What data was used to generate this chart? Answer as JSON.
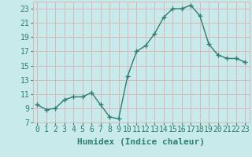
{
  "x": [
    0,
    1,
    2,
    3,
    4,
    5,
    6,
    7,
    8,
    9,
    10,
    11,
    12,
    13,
    14,
    15,
    16,
    17,
    18,
    19,
    20,
    21,
    22,
    23
  ],
  "y": [
    9.5,
    8.8,
    9.0,
    10.2,
    10.6,
    10.6,
    11.2,
    9.5,
    7.8,
    7.5,
    13.5,
    17.0,
    17.8,
    19.5,
    21.8,
    23.0,
    23.0,
    23.5,
    22.0,
    18.0,
    16.5,
    16.0,
    16.0,
    15.5
  ],
  "line_color": "#2e7d6e",
  "marker": "+",
  "bg_color": "#c8eaea",
  "grid_color": "#d8b8b8",
  "xlabel": "Humidex (Indice chaleur)",
  "xlim": [
    -0.5,
    23.5
  ],
  "ylim": [
    7,
    24
  ],
  "yticks": [
    7,
    9,
    11,
    13,
    15,
    17,
    19,
    21,
    23
  ],
  "xticks": [
    0,
    1,
    2,
    3,
    4,
    5,
    6,
    7,
    8,
    9,
    10,
    11,
    12,
    13,
    14,
    15,
    16,
    17,
    18,
    19,
    20,
    21,
    22,
    23
  ],
  "xtick_labels": [
    "0",
    "1",
    "2",
    "3",
    "4",
    "5",
    "6",
    "7",
    "8",
    "9",
    "10",
    "11",
    "12",
    "13",
    "14",
    "15",
    "16",
    "17",
    "18",
    "19",
    "20",
    "21",
    "22",
    "23"
  ],
  "font_color": "#2e7d6e",
  "tick_fontsize": 7,
  "label_fontsize": 8
}
